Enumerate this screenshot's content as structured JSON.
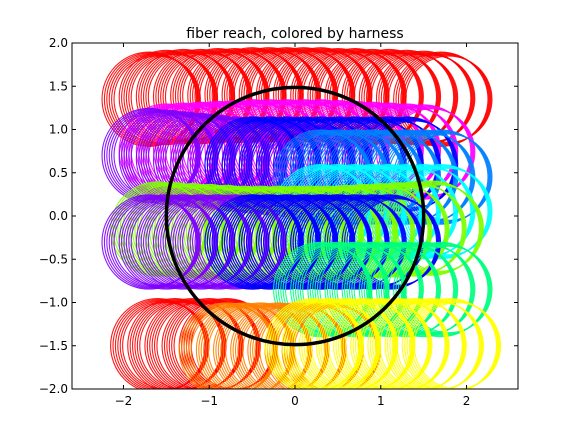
{
  "chart_data": {
    "type": "line",
    "title": "fiber reach, colored by harness",
    "xlabel": "",
    "ylabel": "",
    "xlim": [
      -2.6,
      2.6
    ],
    "ylim": [
      -2.0,
      2.0
    ],
    "x_ticks": [
      -2,
      -1,
      0,
      1,
      2
    ],
    "y_ticks": [
      -2.0,
      -1.5,
      -1.0,
      -0.5,
      0.0,
      0.5,
      1.0,
      1.5,
      2.0
    ],
    "x_tick_labels": [
      "−2",
      "−1",
      "0",
      "1",
      "2"
    ],
    "y_tick_labels": [
      "−2.0",
      "−1.5",
      "−1.0",
      "−0.5",
      "0.0",
      "0.5",
      "1.0",
      "1.5",
      "2.0"
    ],
    "grid": false,
    "legend": "none",
    "series": [
      {
        "color": "#ff0000",
        "reach_radius": 0.55,
        "fibers_x": [
          -1.7,
          -1.5,
          -1.3,
          -1.1,
          -0.9,
          -0.7,
          -0.5,
          -0.3,
          -0.1,
          0.1,
          0.3,
          0.5,
          0.7,
          0.9,
          1.1,
          1.3,
          1.5,
          1.7
        ],
        "fibers_y": [
          1.35,
          1.37,
          1.38,
          1.38,
          1.39,
          1.39,
          1.4,
          1.4,
          1.4,
          1.4,
          1.4,
          1.39,
          1.39,
          1.38,
          1.38,
          1.37,
          1.36,
          1.35
        ]
      },
      {
        "color": "#ff00ff",
        "reach_radius": 0.55,
        "fibers_x": [
          -1.5,
          -1.3,
          -1.1,
          -0.9,
          -0.7,
          -0.5,
          -0.3,
          -0.1,
          0.1,
          0.3,
          0.5,
          0.7,
          0.9,
          1.1,
          1.3,
          1.5
        ],
        "fibers_y": [
          0.75,
          0.76,
          0.77,
          0.78,
          0.79,
          0.8,
          0.8,
          0.8,
          0.8,
          0.8,
          0.79,
          0.78,
          0.77,
          0.76,
          0.75,
          0.74
        ]
      },
      {
        "color": "#8000ff",
        "reach_radius": 0.55,
        "fibers_x": [
          -1.7,
          -1.5,
          -1.3,
          -1.1,
          -0.9,
          -0.7,
          -0.5,
          -0.3,
          -0.1,
          0.1,
          0.3
        ],
        "fibers_y": [
          0.7,
          0.68,
          0.66,
          0.64,
          0.62,
          0.6,
          0.58,
          0.56,
          0.54,
          0.52,
          0.5
        ]
      },
      {
        "color": "#0000ff",
        "reach_radius": 0.55,
        "fibers_x": [
          -0.5,
          -0.3,
          -0.1,
          0.1,
          0.3,
          0.5,
          0.7,
          0.9,
          1.1,
          1.3
        ],
        "fibers_y": [
          0.6,
          0.6,
          0.6,
          0.6,
          0.6,
          0.6,
          0.6,
          0.6,
          0.6,
          0.6
        ]
      },
      {
        "color": "#0080ff",
        "reach_radius": 0.55,
        "fibers_x": [
          0.3,
          0.5,
          0.7,
          0.9,
          1.1,
          1.3,
          1.5,
          1.7
        ],
        "fibers_y": [
          0.45,
          0.45,
          0.45,
          0.45,
          0.45,
          0.45,
          0.45,
          0.45
        ]
      },
      {
        "color": "#00ffff",
        "reach_radius": 0.55,
        "fibers_x": [
          0.3,
          0.5,
          0.7,
          0.9,
          1.1,
          1.3,
          1.5,
          1.7
        ],
        "fibers_y": [
          0.05,
          0.05,
          0.05,
          0.05,
          0.05,
          0.05,
          0.05,
          0.05
        ]
      },
      {
        "color": "#80ff00",
        "reach_radius": 0.55,
        "fibers_x": [
          -1.6,
          -1.4,
          -1.2,
          -1.0,
          -0.8,
          -0.6,
          -0.4,
          -0.2,
          0.0,
          0.2,
          0.4,
          0.6,
          0.8,
          1.0,
          1.2,
          1.4,
          1.6
        ],
        "fibers_y": [
          -0.15,
          -0.16,
          -0.17,
          -0.18,
          -0.19,
          -0.2,
          -0.2,
          -0.2,
          -0.2,
          -0.2,
          -0.2,
          -0.19,
          -0.18,
          -0.17,
          -0.16,
          -0.15,
          -0.14
        ]
      },
      {
        "color": "#8000ff",
        "reach_radius": 0.55,
        "fibers_x": [
          -1.7,
          -1.5,
          -1.3,
          -1.1,
          -0.9,
          -0.7,
          -0.5,
          -0.3,
          -0.1,
          0.1,
          0.3,
          0.5
        ],
        "fibers_y": [
          -0.3,
          -0.3,
          -0.3,
          -0.3,
          -0.3,
          -0.3,
          -0.3,
          -0.3,
          -0.3,
          -0.3,
          -0.3,
          -0.3
        ]
      },
      {
        "color": "#0000ff",
        "reach_radius": 0.55,
        "fibers_x": [
          -0.5,
          -0.3,
          -0.1,
          0.1,
          0.3,
          0.5,
          0.7,
          0.9,
          1.1
        ],
        "fibers_y": [
          -0.3,
          -0.3,
          -0.3,
          -0.3,
          -0.3,
          -0.3,
          -0.3,
          -0.3,
          -0.3
        ]
      },
      {
        "color": "#00ff80",
        "reach_radius": 0.55,
        "fibers_x": [
          0.3,
          0.5,
          0.7,
          0.9,
          1.1,
          1.3,
          1.5,
          1.7
        ],
        "fibers_y": [
          -0.85,
          -0.85,
          -0.85,
          -0.85,
          -0.85,
          -0.85,
          -0.85,
          -0.85
        ]
      },
      {
        "color": "#ff0000",
        "reach_radius": 0.55,
        "fibers_x": [
          -1.6,
          -1.4,
          -1.2,
          -1.0,
          -0.8
        ],
        "fibers_y": [
          -1.5,
          -1.5,
          -1.5,
          -1.5,
          -1.5
        ]
      },
      {
        "color": "#ff8000",
        "reach_radius": 0.55,
        "fibers_x": [
          -0.8,
          -0.6,
          -0.4,
          -0.2,
          0.0,
          0.2,
          0.4
        ],
        "fibers_y": [
          -1.55,
          -1.55,
          -1.55,
          -1.55,
          -1.55,
          -1.55,
          -1.55
        ]
      },
      {
        "color": "#ffff00",
        "reach_radius": 0.55,
        "fibers_x": [
          0.2,
          0.4,
          0.6,
          0.8,
          1.0,
          1.2,
          1.4,
          1.6,
          1.8
        ],
        "fibers_y": [
          -1.5,
          -1.5,
          -1.5,
          -1.5,
          -1.5,
          -1.5,
          -1.5,
          -1.5,
          -1.5
        ]
      }
    ],
    "reference_circle": {
      "cx": 0.0,
      "cy": 0.0,
      "r": 1.5,
      "color": "#000000"
    }
  }
}
